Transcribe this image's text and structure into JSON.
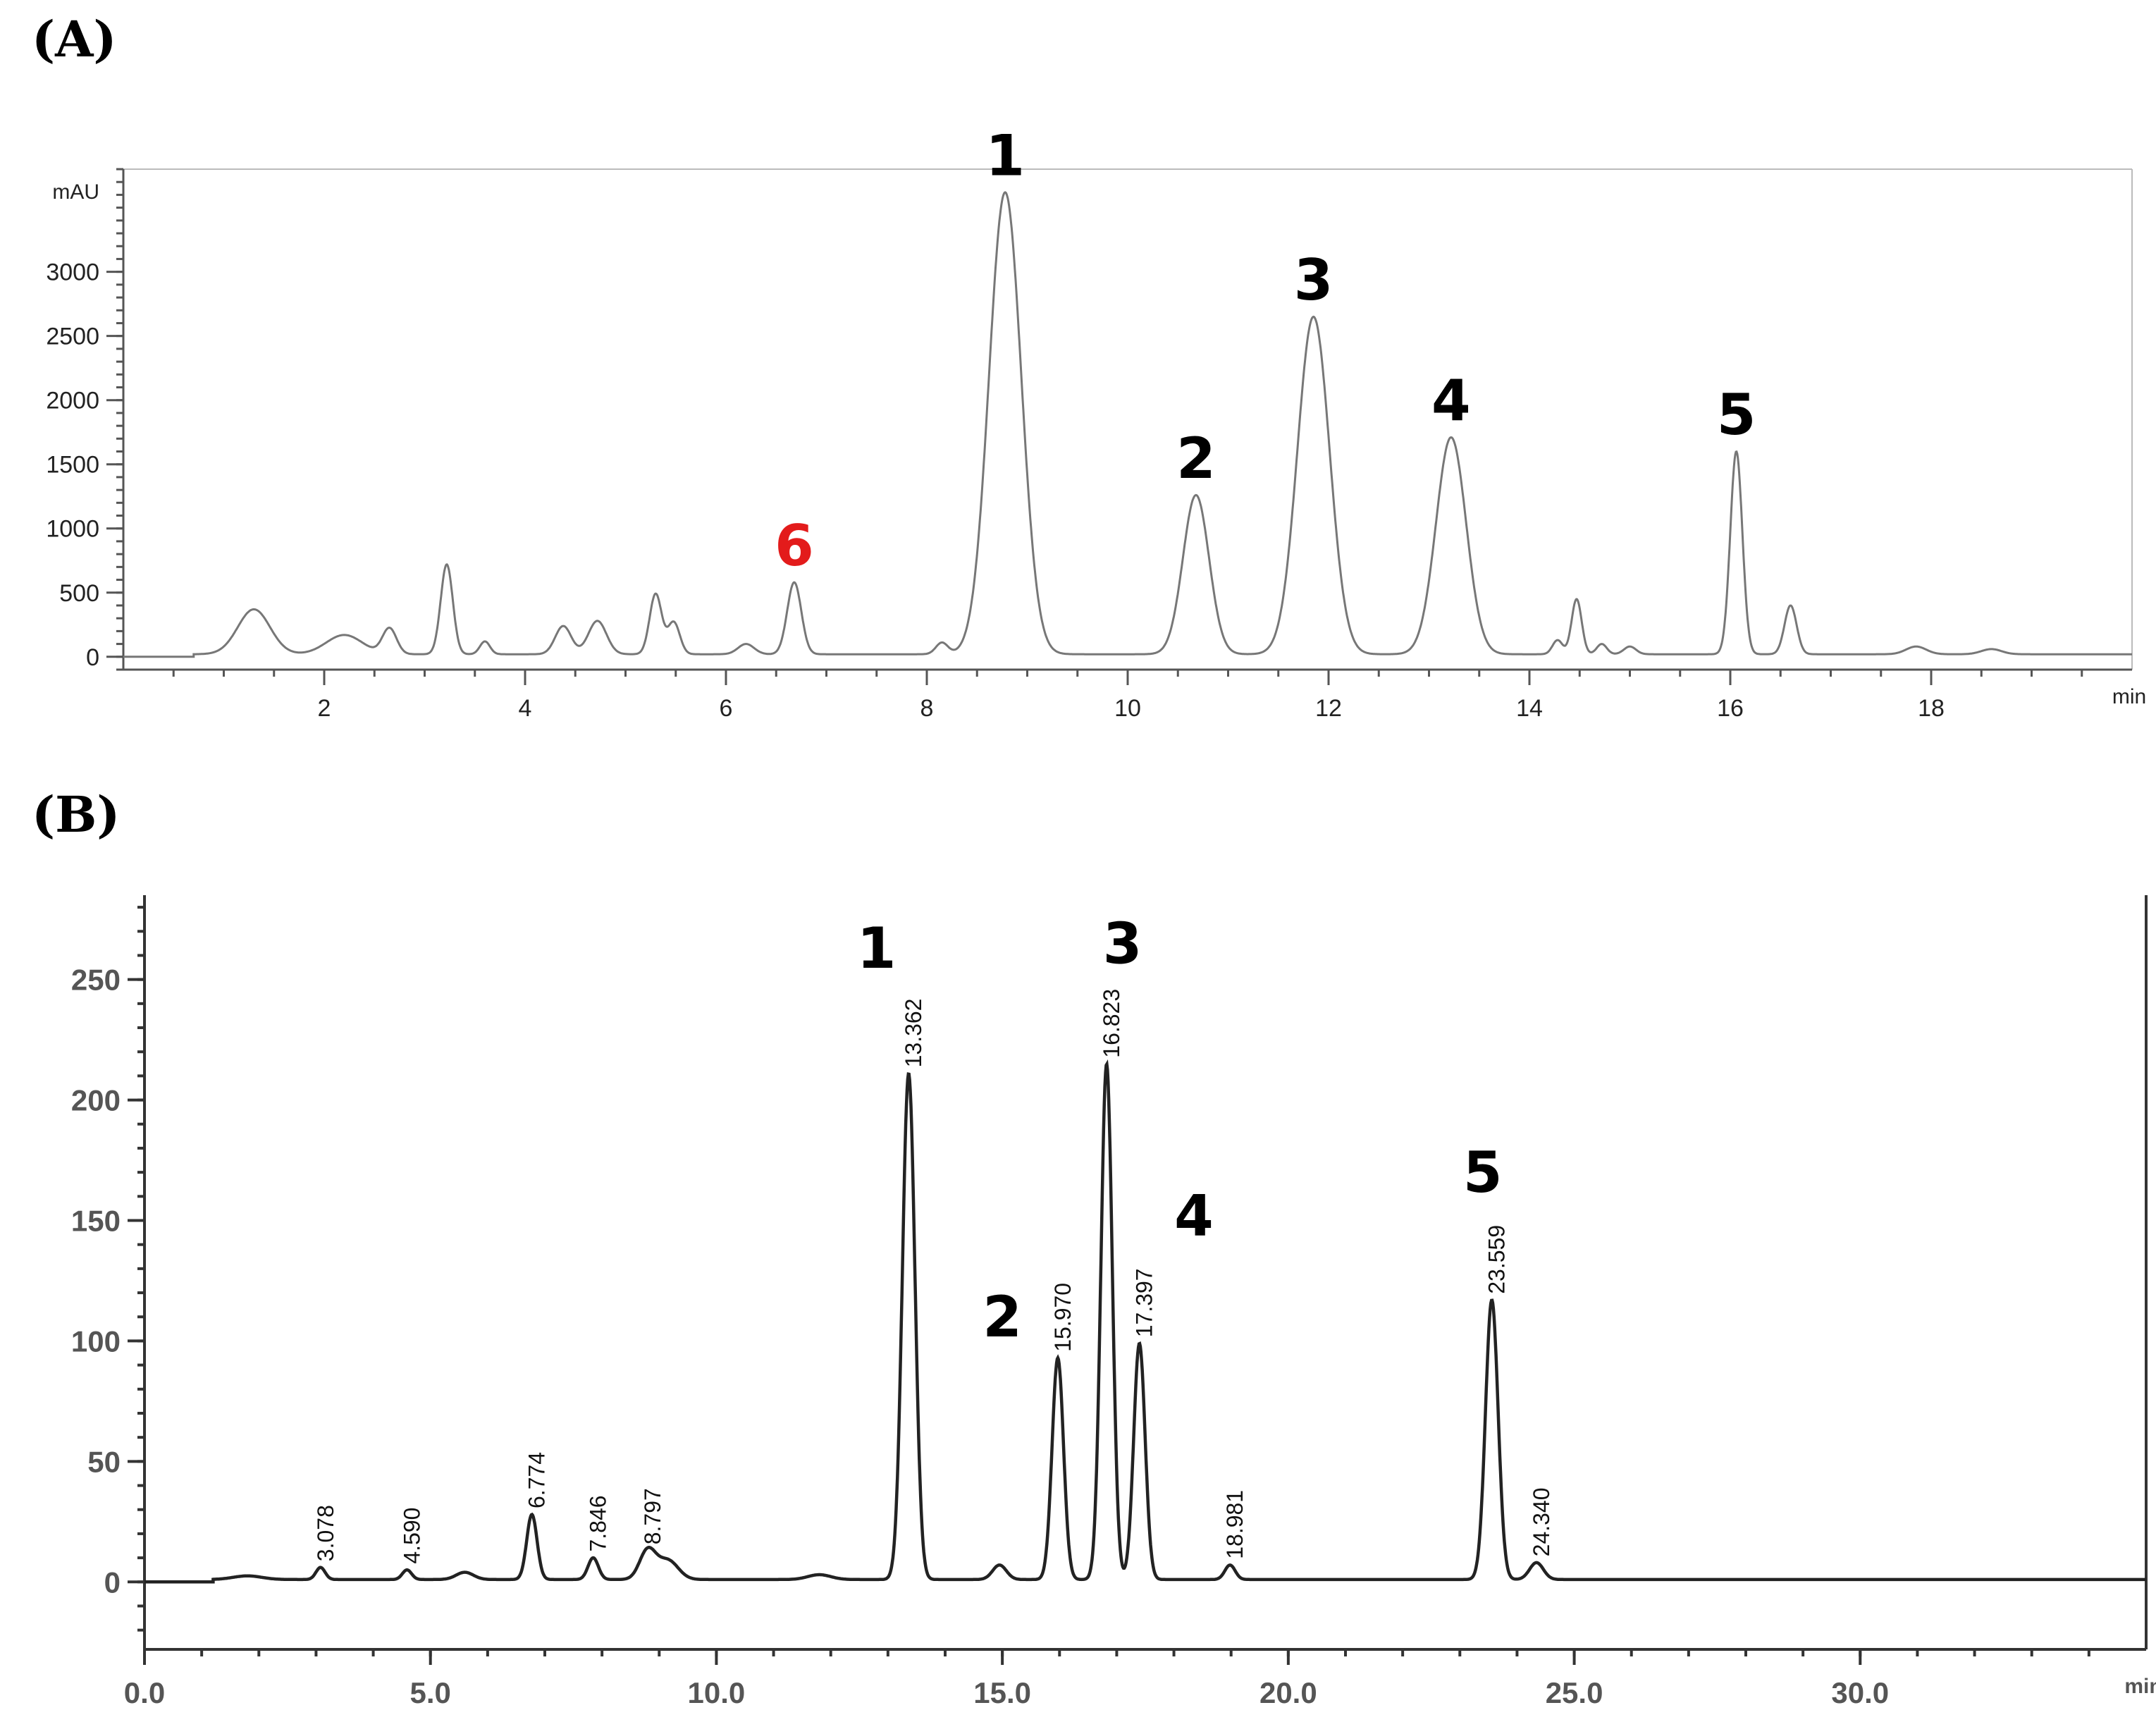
{
  "panel_a_label": "(A)",
  "panel_b_label": "(B)",
  "chart_data": [
    {
      "type": "line",
      "panel": "(A)",
      "ylabel": "mAU",
      "xunit": "min",
      "xlim": [
        0,
        20
      ],
      "ylim": [
        -100,
        3800
      ],
      "xticks": [
        2,
        4,
        6,
        8,
        10,
        12,
        14,
        16,
        18
      ],
      "xtick_labels": [
        "2",
        "4",
        "6",
        "8",
        "10",
        "12",
        "14",
        "16",
        "18"
      ],
      "yticks": [
        0,
        500,
        1000,
        1500,
        2000,
        2500,
        3000
      ],
      "ytick_labels": [
        "0",
        "500",
        "1000",
        "1500",
        "2000",
        "2500",
        "3000"
      ],
      "baseline": 20,
      "peaks": [
        {
          "x": 1.3,
          "y": 350,
          "w": 0.16
        },
        {
          "x": 2.2,
          "y": 150,
          "w": 0.18
        },
        {
          "x": 2.65,
          "y": 200,
          "w": 0.07
        },
        {
          "x": 3.22,
          "y": 700,
          "w": 0.06
        },
        {
          "x": 3.6,
          "y": 100,
          "w": 0.05
        },
        {
          "x": 4.38,
          "y": 220,
          "w": 0.08
        },
        {
          "x": 4.72,
          "y": 260,
          "w": 0.09
        },
        {
          "x": 5.3,
          "y": 470,
          "w": 0.06
        },
        {
          "x": 5.48,
          "y": 250,
          "w": 0.06
        },
        {
          "x": 6.2,
          "y": 80,
          "w": 0.08
        },
        {
          "x": 6.68,
          "y": 560,
          "w": 0.07
        },
        {
          "x": 8.15,
          "y": 90,
          "w": 0.06
        },
        {
          "x": 8.78,
          "y": 3600,
          "w": 0.16
        },
        {
          "x": 10.68,
          "y": 1240,
          "w": 0.13
        },
        {
          "x": 11.85,
          "y": 2630,
          "w": 0.16
        },
        {
          "x": 13.22,
          "y": 1690,
          "w": 0.15
        },
        {
          "x": 14.28,
          "y": 110,
          "w": 0.05
        },
        {
          "x": 14.47,
          "y": 430,
          "w": 0.05
        },
        {
          "x": 14.72,
          "y": 80,
          "w": 0.05
        },
        {
          "x": 15.0,
          "y": 60,
          "w": 0.06
        },
        {
          "x": 16.06,
          "y": 1580,
          "w": 0.06
        },
        {
          "x": 16.6,
          "y": 380,
          "w": 0.06
        },
        {
          "x": 17.85,
          "y": 60,
          "w": 0.1
        },
        {
          "x": 18.6,
          "y": 40,
          "w": 0.1
        }
      ],
      "annotations": [
        {
          "text": "1",
          "x": 8.78,
          "y": 3600,
          "color": "#000000"
        },
        {
          "text": "2",
          "x": 10.68,
          "y": 1240,
          "color": "#000000"
        },
        {
          "text": "3",
          "x": 11.85,
          "y": 2630,
          "color": "#000000"
        },
        {
          "text": "4",
          "x": 13.22,
          "y": 1690,
          "color": "#000000"
        },
        {
          "text": "5",
          "x": 16.06,
          "y": 1580,
          "color": "#000000"
        },
        {
          "text": "6",
          "x": 6.68,
          "y": 560,
          "color": "#e31b1b"
        }
      ]
    },
    {
      "type": "line",
      "panel": "(B)",
      "xunit": "min",
      "xlim": [
        0,
        35
      ],
      "ylim": [
        -28,
        285
      ],
      "xticks": [
        0,
        5,
        10,
        15,
        20,
        25,
        30
      ],
      "xtick_labels": [
        "0.0",
        "5.0",
        "10.0",
        "15.0",
        "20.0",
        "25.0",
        "30.0"
      ],
      "yticks": [
        0,
        50,
        100,
        150,
        200,
        250
      ],
      "ytick_labels": [
        "0",
        "50",
        "100",
        "150",
        "200",
        "250"
      ],
      "baseline": 1,
      "peaks": [
        {
          "x": 1.8,
          "y": 1.5,
          "w": 0.25
        },
        {
          "x": 3.078,
          "y": 5,
          "w": 0.08
        },
        {
          "x": 4.59,
          "y": 4,
          "w": 0.08
        },
        {
          "x": 5.6,
          "y": 3,
          "w": 0.15
        },
        {
          "x": 6.774,
          "y": 27,
          "w": 0.09
        },
        {
          "x": 7.846,
          "y": 9,
          "w": 0.09
        },
        {
          "x": 8.797,
          "y": 12,
          "w": 0.14
        },
        {
          "x": 9.15,
          "y": 8,
          "w": 0.18
        },
        {
          "x": 11.8,
          "y": 2,
          "w": 0.2
        },
        {
          "x": 13.362,
          "y": 210,
          "w": 0.11
        },
        {
          "x": 14.95,
          "y": 6,
          "w": 0.12
        },
        {
          "x": 15.97,
          "y": 92,
          "w": 0.1
        },
        {
          "x": 16.823,
          "y": 214,
          "w": 0.1
        },
        {
          "x": 17.397,
          "y": 98,
          "w": 0.1
        },
        {
          "x": 18.981,
          "y": 6,
          "w": 0.09
        },
        {
          "x": 23.559,
          "y": 116,
          "w": 0.11
        },
        {
          "x": 24.34,
          "y": 7,
          "w": 0.12
        }
      ],
      "rt_labels": [
        {
          "text": "3.078",
          "x": 3.078,
          "y": 5
        },
        {
          "text": "4.590",
          "x": 4.59,
          "y": 4
        },
        {
          "text": "6.774",
          "x": 6.774,
          "y": 27
        },
        {
          "text": "7.846",
          "x": 7.846,
          "y": 9
        },
        {
          "text": "8.797",
          "x": 8.797,
          "y": 12
        },
        {
          "text": "13.362",
          "x": 13.362,
          "y": 210
        },
        {
          "text": "15.970",
          "x": 15.97,
          "y": 92
        },
        {
          "text": "16.823",
          "x": 16.823,
          "y": 214
        },
        {
          "text": "17.397",
          "x": 17.397,
          "y": 98
        },
        {
          "text": "18.981",
          "x": 18.981,
          "y": 6
        },
        {
          "text": "23.559",
          "x": 23.559,
          "y": 116
        },
        {
          "text": "24.340",
          "x": 24.34,
          "y": 7
        }
      ],
      "annotations": [
        {
          "text": "1",
          "x": 12.8,
          "y": 263,
          "color": "#000000"
        },
        {
          "text": "2",
          "x": 15.0,
          "y": 110,
          "color": "#000000"
        },
        {
          "text": "3",
          "x": 17.1,
          "y": 265,
          "color": "#000000"
        },
        {
          "text": "4",
          "x": 18.35,
          "y": 152,
          "color": "#000000"
        },
        {
          "text": "5",
          "x": 23.4,
          "y": 170,
          "color": "#000000"
        }
      ]
    }
  ]
}
